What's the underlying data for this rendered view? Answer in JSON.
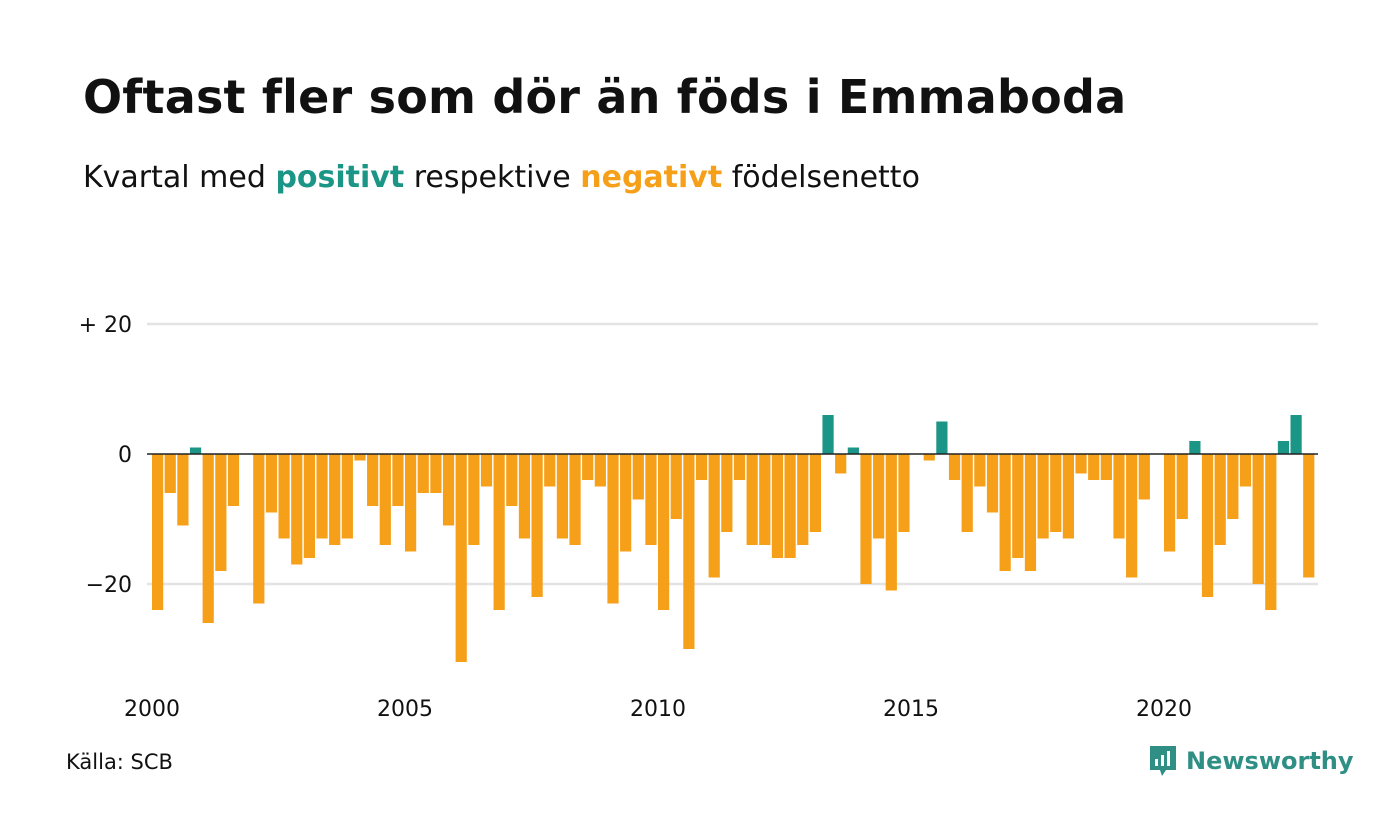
{
  "header": {
    "title": "Oftast fler som dör än föds i Emmaboda",
    "subtitle_prefix": "Kvartal med",
    "subtitle_positive": "positivt",
    "subtitle_middle": "respektive",
    "subtitle_negative": "negativt",
    "subtitle_suffix": "födelsenetto"
  },
  "footer": {
    "source": "Källa: SCB",
    "brand": "Newsworthy",
    "brand_icon": "newsworthy-logo-icon"
  },
  "colors": {
    "positive": "#1a9586",
    "negative": "#f6a01a",
    "grid": "#e3e3e3",
    "zero_line": "#222222"
  },
  "chart_data": {
    "type": "bar",
    "x_start": "2000 Q1",
    "periods_per_year": 4,
    "values": [
      -24,
      -6,
      -11,
      1,
      -26,
      -18,
      -8,
      null,
      -23,
      -9,
      -13,
      -17,
      -16,
      -13,
      -14,
      -13,
      -1,
      -8,
      -14,
      -8,
      -15,
      -6,
      -6,
      -11,
      -32,
      -14,
      -5,
      -24,
      -8,
      -13,
      -22,
      -5,
      -13,
      -14,
      -4,
      -5,
      -23,
      -15,
      -7,
      -14,
      -24,
      -10,
      -30,
      -4,
      -19,
      -12,
      -4,
      -14,
      -14,
      -16,
      -16,
      -14,
      -12,
      6,
      -3,
      1,
      -20,
      -13,
      -21,
      -12,
      null,
      -1,
      5,
      -4,
      -12,
      -5,
      -9,
      -18,
      -16,
      -18,
      -13,
      -12,
      -13,
      -3,
      -4,
      -4,
      -13,
      -19,
      -7,
      null,
      -15,
      -10,
      2,
      -22,
      -14,
      -10,
      -5,
      -20,
      -24,
      2,
      6,
      -19
    ],
    "y_ticks": [
      {
        "value": 20,
        "label": "+ 20"
      },
      {
        "value": 0,
        "label": "0"
      },
      {
        "value": -20,
        "label": "−20"
      }
    ],
    "x_ticks": [
      {
        "value": 2000,
        "label": "2000"
      },
      {
        "value": 2005,
        "label": "2005"
      },
      {
        "value": 2010,
        "label": "2010"
      },
      {
        "value": 2015,
        "label": "2015"
      },
      {
        "value": 2020,
        "label": "2020"
      }
    ],
    "ylim": [
      -34,
      22
    ],
    "grid": true,
    "legend": "none"
  }
}
